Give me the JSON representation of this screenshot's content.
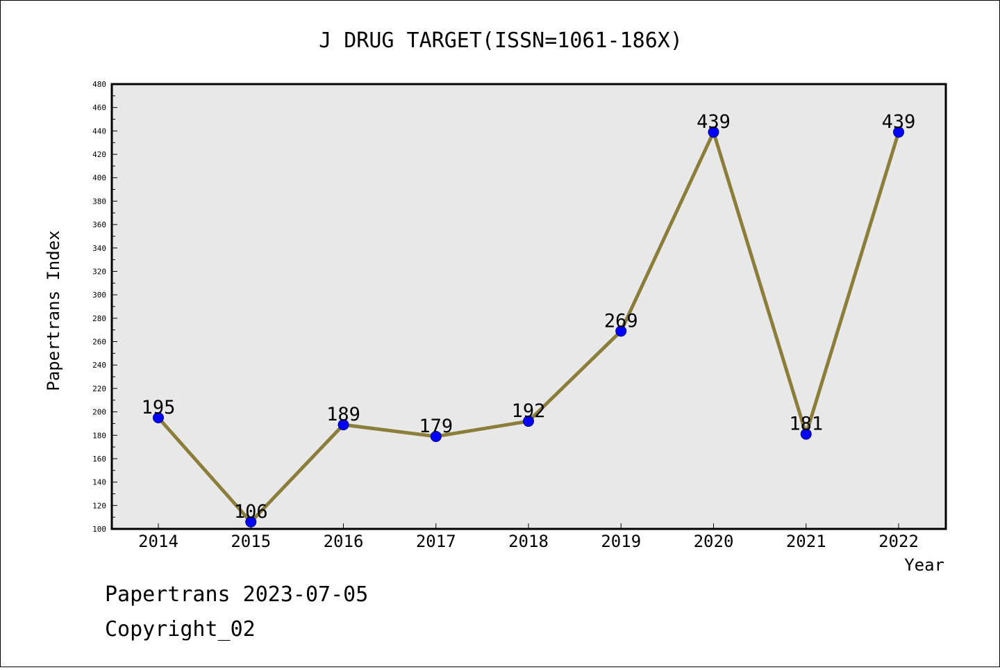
{
  "chart_data": {
    "type": "line",
    "title": "J DRUG TARGET(ISSN=1061-186X)",
    "xlabel": "Year",
    "ylabel": "Papertrans Index",
    "categories": [
      "2014",
      "2015",
      "2016",
      "2017",
      "2018",
      "2019",
      "2020",
      "2021",
      "2022"
    ],
    "series": [
      {
        "values": [
          195,
          106,
          189,
          179,
          192,
          269,
          439,
          181,
          439
        ],
        "labels": [
          "195",
          "106",
          "189",
          "179",
          "192",
          "269",
          "439",
          "181",
          "439"
        ]
      }
    ],
    "ylim": [
      100,
      480
    ],
    "ytick_labels": [
      "100",
      "120",
      "140",
      "160",
      "180",
      "200",
      "220",
      "240",
      "260",
      "280",
      "300",
      "320",
      "340",
      "360",
      "380",
      "400",
      "420",
      "440",
      "460",
      "480"
    ],
    "grid": false,
    "legend": "none",
    "colors": {
      "plot_background": "#e8e8e8",
      "line": "#8b7d3a",
      "marker": "#0000ff",
      "marker_edge": "#000080"
    }
  },
  "footer": {
    "line1": "Papertrans 2023-07-05",
    "line2": "Copyright_02"
  }
}
